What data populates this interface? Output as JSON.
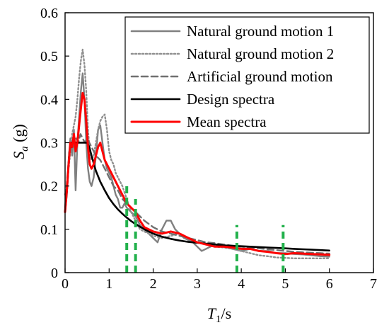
{
  "chart_data": {
    "type": "line",
    "title": "",
    "xlabel_main": "T",
    "xlabel_sub": "1",
    "xlabel_unit": "/s",
    "ylabel_main": "S",
    "ylabel_sub": "a",
    "ylabel_unit": " (g)",
    "xlim": [
      0,
      7
    ],
    "ylim": [
      0,
      0.6
    ],
    "xticks": [
      "0",
      "1",
      "2",
      "3",
      "4",
      "5",
      "6",
      "7"
    ],
    "yticks": [
      "0",
      "0.1",
      "0.2",
      "0.3",
      "0.4",
      "0.5",
      "0.6"
    ],
    "grid": false,
    "legend_position": "top-right",
    "series": [
      {
        "name": "Natural ground motion 1",
        "color": "#808080",
        "style": "solid",
        "x": [
          0,
          0.04,
          0.08,
          0.12,
          0.16,
          0.2,
          0.24,
          0.28,
          0.32,
          0.36,
          0.4,
          0.44,
          0.48,
          0.52,
          0.56,
          0.6,
          0.65,
          0.7,
          0.75,
          0.8,
          0.85,
          0.9,
          0.95,
          1.0,
          1.05,
          1.1,
          1.15,
          1.2,
          1.25,
          1.3,
          1.35,
          1.4,
          1.5,
          1.6,
          1.7,
          1.8,
          1.9,
          2.0,
          2.1,
          2.2,
          2.3,
          2.4,
          2.5,
          2.6,
          2.7,
          2.8,
          2.9,
          3.0,
          3.1,
          3.2,
          3.4,
          3.6,
          3.8,
          4.0,
          4.2,
          4.4,
          4.6,
          4.8,
          5.0,
          5.2,
          5.4,
          5.6,
          5.8,
          6.0
        ],
        "y": [
          0.14,
          0.18,
          0.26,
          0.31,
          0.27,
          0.33,
          0.19,
          0.3,
          0.36,
          0.42,
          0.46,
          0.4,
          0.3,
          0.24,
          0.21,
          0.2,
          0.22,
          0.27,
          0.33,
          0.34,
          0.3,
          0.26,
          0.24,
          0.23,
          0.22,
          0.2,
          0.18,
          0.17,
          0.15,
          0.15,
          0.16,
          0.15,
          0.14,
          0.13,
          0.11,
          0.1,
          0.09,
          0.08,
          0.07,
          0.1,
          0.12,
          0.12,
          0.1,
          0.09,
          0.08,
          0.075,
          0.07,
          0.06,
          0.05,
          0.055,
          0.065,
          0.06,
          0.055,
          0.05,
          0.055,
          0.05,
          0.05,
          0.045,
          0.045,
          0.043,
          0.042,
          0.04,
          0.038,
          0.037
        ]
      },
      {
        "name": "Natural ground motion 2",
        "color": "#909090",
        "style": "dotted",
        "x": [
          0,
          0.04,
          0.08,
          0.12,
          0.16,
          0.2,
          0.24,
          0.28,
          0.32,
          0.36,
          0.4,
          0.44,
          0.48,
          0.52,
          0.56,
          0.6,
          0.65,
          0.7,
          0.75,
          0.8,
          0.85,
          0.9,
          0.95,
          1.0,
          1.05,
          1.1,
          1.15,
          1.2,
          1.3,
          1.4,
          1.5,
          1.6,
          1.7,
          1.8,
          1.9,
          2.0,
          2.2,
          2.4,
          2.6,
          2.8,
          3.0,
          3.2,
          3.4,
          3.6,
          3.8,
          4.0,
          4.2,
          4.4,
          4.6,
          4.8,
          5.0,
          5.2,
          5.4,
          5.6,
          5.8,
          6.0
        ],
        "y": [
          0.18,
          0.2,
          0.24,
          0.28,
          0.32,
          0.34,
          0.36,
          0.4,
          0.45,
          0.49,
          0.515,
          0.48,
          0.42,
          0.33,
          0.28,
          0.26,
          0.27,
          0.3,
          0.33,
          0.35,
          0.36,
          0.365,
          0.33,
          0.28,
          0.26,
          0.25,
          0.23,
          0.22,
          0.2,
          0.17,
          0.14,
          0.12,
          0.1,
          0.095,
          0.09,
          0.085,
          0.08,
          0.085,
          0.09,
          0.08,
          0.07,
          0.065,
          0.06,
          0.058,
          0.055,
          0.05,
          0.045,
          0.04,
          0.038,
          0.035,
          0.034,
          0.033,
          0.033,
          0.033,
          0.033,
          0.033
        ]
      },
      {
        "name": "Artificial ground motion",
        "color": "#707070",
        "style": "dashed",
        "x": [
          0,
          0.05,
          0.1,
          0.15,
          0.2,
          0.25,
          0.3,
          0.35,
          0.4,
          0.45,
          0.5,
          0.55,
          0.6,
          0.7,
          0.8,
          0.9,
          1.0,
          1.1,
          1.2,
          1.3,
          1.4,
          1.5,
          1.6,
          1.8,
          2.0,
          2.2,
          2.4,
          2.6,
          2.8,
          3.0,
          3.2,
          3.4,
          3.6,
          3.8,
          4.0,
          4.2,
          4.4,
          4.6,
          4.8,
          5.0,
          5.2,
          5.4,
          5.6,
          5.8,
          6.0
        ],
        "y": [
          0.15,
          0.22,
          0.28,
          0.3,
          0.29,
          0.31,
          0.3,
          0.32,
          0.31,
          0.3,
          0.31,
          0.3,
          0.29,
          0.27,
          0.26,
          0.24,
          0.22,
          0.2,
          0.19,
          0.17,
          0.16,
          0.15,
          0.14,
          0.12,
          0.105,
          0.095,
          0.09,
          0.085,
          0.08,
          0.075,
          0.07,
          0.068,
          0.065,
          0.062,
          0.06,
          0.058,
          0.056,
          0.054,
          0.052,
          0.05,
          0.048,
          0.047,
          0.046,
          0.045,
          0.044
        ]
      },
      {
        "name": "Design spectra",
        "color": "#000000",
        "style": "solid",
        "x": [
          0,
          0.05,
          0.1,
          0.15,
          0.2,
          0.25,
          0.3,
          0.35,
          0.4,
          0.45,
          0.5,
          0.55,
          0.6,
          0.7,
          0.8,
          0.9,
          1.0,
          1.1,
          1.2,
          1.3,
          1.4,
          1.5,
          1.6,
          1.8,
          2.0,
          2.2,
          2.4,
          2.6,
          2.8,
          3.0,
          3.2,
          3.4,
          3.6,
          3.8,
          4.0,
          4.2,
          4.4,
          4.6,
          4.8,
          5.0,
          5.2,
          5.4,
          5.6,
          5.8,
          6.0
        ],
        "y": [
          0.14,
          0.2,
          0.28,
          0.3,
          0.3,
          0.3,
          0.3,
          0.3,
          0.3,
          0.3,
          0.3,
          0.29,
          0.27,
          0.235,
          0.21,
          0.19,
          0.172,
          0.158,
          0.146,
          0.136,
          0.127,
          0.119,
          0.112,
          0.1,
          0.09,
          0.083,
          0.078,
          0.074,
          0.071,
          0.069,
          0.067,
          0.065,
          0.063,
          0.062,
          0.061,
          0.06,
          0.059,
          0.058,
          0.057,
          0.056,
          0.055,
          0.054,
          0.053,
          0.052,
          0.051
        ]
      },
      {
        "name": "Mean spectra",
        "color": "#ff0000",
        "style": "solid",
        "x": [
          0,
          0.04,
          0.08,
          0.12,
          0.16,
          0.2,
          0.24,
          0.28,
          0.32,
          0.36,
          0.4,
          0.44,
          0.48,
          0.52,
          0.56,
          0.6,
          0.65,
          0.7,
          0.75,
          0.8,
          0.85,
          0.9,
          0.95,
          1.0,
          1.1,
          1.2,
          1.3,
          1.4,
          1.5,
          1.6,
          1.7,
          1.8,
          1.9,
          2.0,
          2.2,
          2.4,
          2.6,
          2.8,
          3.0,
          3.2,
          3.4,
          3.6,
          3.8,
          4.0,
          4.2,
          4.4,
          4.6,
          4.8,
          5.0,
          5.2,
          5.4,
          5.6,
          5.8,
          6.0
        ],
        "y": [
          0.14,
          0.19,
          0.25,
          0.3,
          0.29,
          0.32,
          0.28,
          0.3,
          0.34,
          0.38,
          0.415,
          0.4,
          0.35,
          0.29,
          0.25,
          0.24,
          0.25,
          0.27,
          0.29,
          0.3,
          0.28,
          0.26,
          0.25,
          0.24,
          0.22,
          0.2,
          0.18,
          0.16,
          0.15,
          0.14,
          0.12,
          0.105,
          0.1,
          0.095,
          0.09,
          0.095,
          0.09,
          0.08,
          0.07,
          0.065,
          0.06,
          0.06,
          0.058,
          0.055,
          0.055,
          0.05,
          0.048,
          0.045,
          0.043,
          0.045,
          0.044,
          0.043,
          0.042,
          0.041
        ]
      }
    ],
    "markers": {
      "color": "#22b14c",
      "style": "dashed",
      "x": [
        1.4,
        1.6,
        3.9,
        4.95
      ],
      "y_top": [
        0.2,
        0.17,
        0.11,
        0.11
      ]
    }
  }
}
